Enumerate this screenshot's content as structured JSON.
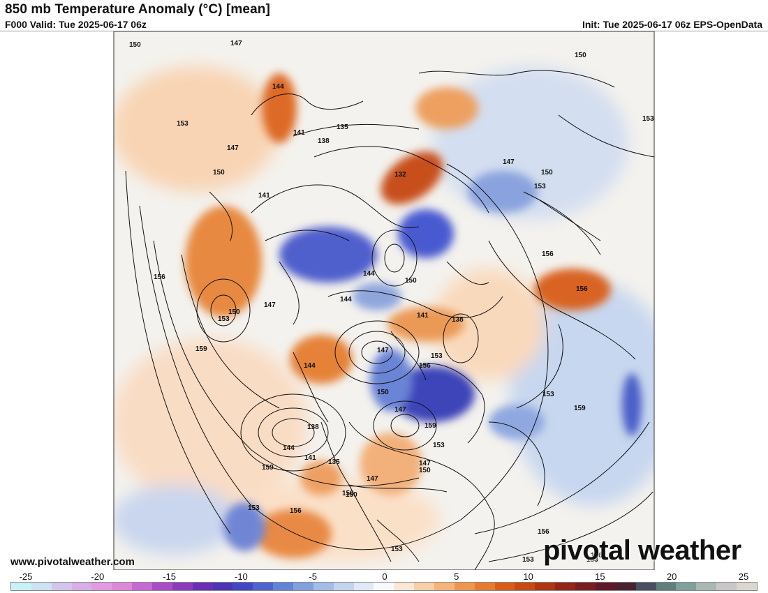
{
  "header": {
    "title": "850 mb Temperature Anomaly (°C) [mean]",
    "valid": "F000 Valid: Tue 2025-06-17 06z",
    "init": "Init: Tue 2025-06-17 06z EPS-OpenData"
  },
  "footer": {
    "website": "www.pivotalweather.com",
    "brand": "pivotal weather"
  },
  "colorbar": {
    "tick_labels": [
      "-25",
      "-20",
      "-15",
      "-10",
      "-5",
      "0",
      "5",
      "10",
      "15",
      "20",
      "25"
    ],
    "colors": [
      "#c8f2f5",
      "#cde2f2",
      "#d3c4ee",
      "#d8aee8",
      "#e29be0",
      "#de87d8",
      "#c66ad2",
      "#a94cc6",
      "#8a3bbd",
      "#6a2fb5",
      "#4c34b4",
      "#3f48c4",
      "#4d63cf",
      "#6384d6",
      "#82a0dd",
      "#a4bde6",
      "#c3d4ee",
      "#e0e9f5",
      "#f7fbff",
      "#fce7d6",
      "#f9cfa8",
      "#f5b47a",
      "#ee964f",
      "#e57b2e",
      "#d85e17",
      "#c64a10",
      "#ae3612",
      "#922716",
      "#781e1f",
      "#5e1a28",
      "#48232f",
      "#485060",
      "#5f7e7e",
      "#7fa09b",
      "#a8b8b3",
      "#c8c6c6",
      "#dcd6d0"
    ]
  },
  "map": {
    "contour_labels": [
      "150",
      "147",
      "144",
      "141",
      "138",
      "135",
      "132",
      "144",
      "147",
      "150",
      "153",
      "156",
      "159",
      "153",
      "150",
      "147",
      "144",
      "141",
      "138",
      "135",
      "156",
      "159",
      "153",
      "150",
      "147",
      "144",
      "141",
      "138",
      "147",
      "150",
      "153",
      "156",
      "159",
      "153",
      "150",
      "153",
      "156",
      "159",
      "153",
      "156",
      "150",
      "147",
      "144",
      "141",
      "147",
      "150",
      "153",
      "147",
      "150",
      "153",
      "156",
      "153",
      "150",
      "156",
      "153"
    ],
    "colors": {
      "warm": "#e5772e",
      "warm_light": "#f6c39a",
      "cold": "#4050c0",
      "cold_light": "#b8cdec",
      "land_line": "#111111",
      "contour": "#111111"
    }
  }
}
